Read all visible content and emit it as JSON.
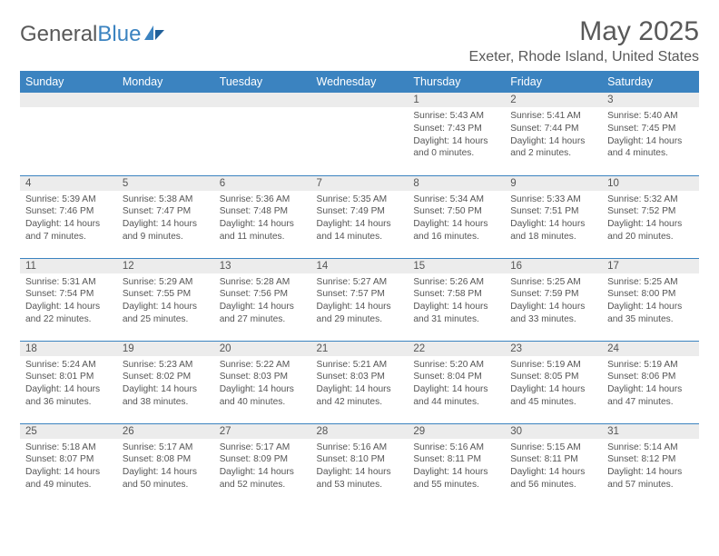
{
  "brand": {
    "word1": "General",
    "word2": "Blue"
  },
  "title": "May 2025",
  "location": "Exeter, Rhode Island, United States",
  "colors": {
    "accent": "#3b83c0",
    "gray_row": "#ececec",
    "text": "#555555",
    "title": "#595959",
    "bg": "#ffffff"
  },
  "week_headers": [
    "Sunday",
    "Monday",
    "Tuesday",
    "Wednesday",
    "Thursday",
    "Friday",
    "Saturday"
  ],
  "weeks": [
    [
      {
        "n": "",
        "lines": []
      },
      {
        "n": "",
        "lines": []
      },
      {
        "n": "",
        "lines": []
      },
      {
        "n": "",
        "lines": []
      },
      {
        "n": "1",
        "lines": [
          "Sunrise: 5:43 AM",
          "Sunset: 7:43 PM",
          "Daylight: 14 hours",
          "and 0 minutes."
        ]
      },
      {
        "n": "2",
        "lines": [
          "Sunrise: 5:41 AM",
          "Sunset: 7:44 PM",
          "Daylight: 14 hours",
          "and 2 minutes."
        ]
      },
      {
        "n": "3",
        "lines": [
          "Sunrise: 5:40 AM",
          "Sunset: 7:45 PM",
          "Daylight: 14 hours",
          "and 4 minutes."
        ]
      }
    ],
    [
      {
        "n": "4",
        "lines": [
          "Sunrise: 5:39 AM",
          "Sunset: 7:46 PM",
          "Daylight: 14 hours",
          "and 7 minutes."
        ]
      },
      {
        "n": "5",
        "lines": [
          "Sunrise: 5:38 AM",
          "Sunset: 7:47 PM",
          "Daylight: 14 hours",
          "and 9 minutes."
        ]
      },
      {
        "n": "6",
        "lines": [
          "Sunrise: 5:36 AM",
          "Sunset: 7:48 PM",
          "Daylight: 14 hours",
          "and 11 minutes."
        ]
      },
      {
        "n": "7",
        "lines": [
          "Sunrise: 5:35 AM",
          "Sunset: 7:49 PM",
          "Daylight: 14 hours",
          "and 14 minutes."
        ]
      },
      {
        "n": "8",
        "lines": [
          "Sunrise: 5:34 AM",
          "Sunset: 7:50 PM",
          "Daylight: 14 hours",
          "and 16 minutes."
        ]
      },
      {
        "n": "9",
        "lines": [
          "Sunrise: 5:33 AM",
          "Sunset: 7:51 PM",
          "Daylight: 14 hours",
          "and 18 minutes."
        ]
      },
      {
        "n": "10",
        "lines": [
          "Sunrise: 5:32 AM",
          "Sunset: 7:52 PM",
          "Daylight: 14 hours",
          "and 20 minutes."
        ]
      }
    ],
    [
      {
        "n": "11",
        "lines": [
          "Sunrise: 5:31 AM",
          "Sunset: 7:54 PM",
          "Daylight: 14 hours",
          "and 22 minutes."
        ]
      },
      {
        "n": "12",
        "lines": [
          "Sunrise: 5:29 AM",
          "Sunset: 7:55 PM",
          "Daylight: 14 hours",
          "and 25 minutes."
        ]
      },
      {
        "n": "13",
        "lines": [
          "Sunrise: 5:28 AM",
          "Sunset: 7:56 PM",
          "Daylight: 14 hours",
          "and 27 minutes."
        ]
      },
      {
        "n": "14",
        "lines": [
          "Sunrise: 5:27 AM",
          "Sunset: 7:57 PM",
          "Daylight: 14 hours",
          "and 29 minutes."
        ]
      },
      {
        "n": "15",
        "lines": [
          "Sunrise: 5:26 AM",
          "Sunset: 7:58 PM",
          "Daylight: 14 hours",
          "and 31 minutes."
        ]
      },
      {
        "n": "16",
        "lines": [
          "Sunrise: 5:25 AM",
          "Sunset: 7:59 PM",
          "Daylight: 14 hours",
          "and 33 minutes."
        ]
      },
      {
        "n": "17",
        "lines": [
          "Sunrise: 5:25 AM",
          "Sunset: 8:00 PM",
          "Daylight: 14 hours",
          "and 35 minutes."
        ]
      }
    ],
    [
      {
        "n": "18",
        "lines": [
          "Sunrise: 5:24 AM",
          "Sunset: 8:01 PM",
          "Daylight: 14 hours",
          "and 36 minutes."
        ]
      },
      {
        "n": "19",
        "lines": [
          "Sunrise: 5:23 AM",
          "Sunset: 8:02 PM",
          "Daylight: 14 hours",
          "and 38 minutes."
        ]
      },
      {
        "n": "20",
        "lines": [
          "Sunrise: 5:22 AM",
          "Sunset: 8:03 PM",
          "Daylight: 14 hours",
          "and 40 minutes."
        ]
      },
      {
        "n": "21",
        "lines": [
          "Sunrise: 5:21 AM",
          "Sunset: 8:03 PM",
          "Daylight: 14 hours",
          "and 42 minutes."
        ]
      },
      {
        "n": "22",
        "lines": [
          "Sunrise: 5:20 AM",
          "Sunset: 8:04 PM",
          "Daylight: 14 hours",
          "and 44 minutes."
        ]
      },
      {
        "n": "23",
        "lines": [
          "Sunrise: 5:19 AM",
          "Sunset: 8:05 PM",
          "Daylight: 14 hours",
          "and 45 minutes."
        ]
      },
      {
        "n": "24",
        "lines": [
          "Sunrise: 5:19 AM",
          "Sunset: 8:06 PM",
          "Daylight: 14 hours",
          "and 47 minutes."
        ]
      }
    ],
    [
      {
        "n": "25",
        "lines": [
          "Sunrise: 5:18 AM",
          "Sunset: 8:07 PM",
          "Daylight: 14 hours",
          "and 49 minutes."
        ]
      },
      {
        "n": "26",
        "lines": [
          "Sunrise: 5:17 AM",
          "Sunset: 8:08 PM",
          "Daylight: 14 hours",
          "and 50 minutes."
        ]
      },
      {
        "n": "27",
        "lines": [
          "Sunrise: 5:17 AM",
          "Sunset: 8:09 PM",
          "Daylight: 14 hours",
          "and 52 minutes."
        ]
      },
      {
        "n": "28",
        "lines": [
          "Sunrise: 5:16 AM",
          "Sunset: 8:10 PM",
          "Daylight: 14 hours",
          "and 53 minutes."
        ]
      },
      {
        "n": "29",
        "lines": [
          "Sunrise: 5:16 AM",
          "Sunset: 8:11 PM",
          "Daylight: 14 hours",
          "and 55 minutes."
        ]
      },
      {
        "n": "30",
        "lines": [
          "Sunrise: 5:15 AM",
          "Sunset: 8:11 PM",
          "Daylight: 14 hours",
          "and 56 minutes."
        ]
      },
      {
        "n": "31",
        "lines": [
          "Sunrise: 5:14 AM",
          "Sunset: 8:12 PM",
          "Daylight: 14 hours",
          "and 57 minutes."
        ]
      }
    ]
  ]
}
